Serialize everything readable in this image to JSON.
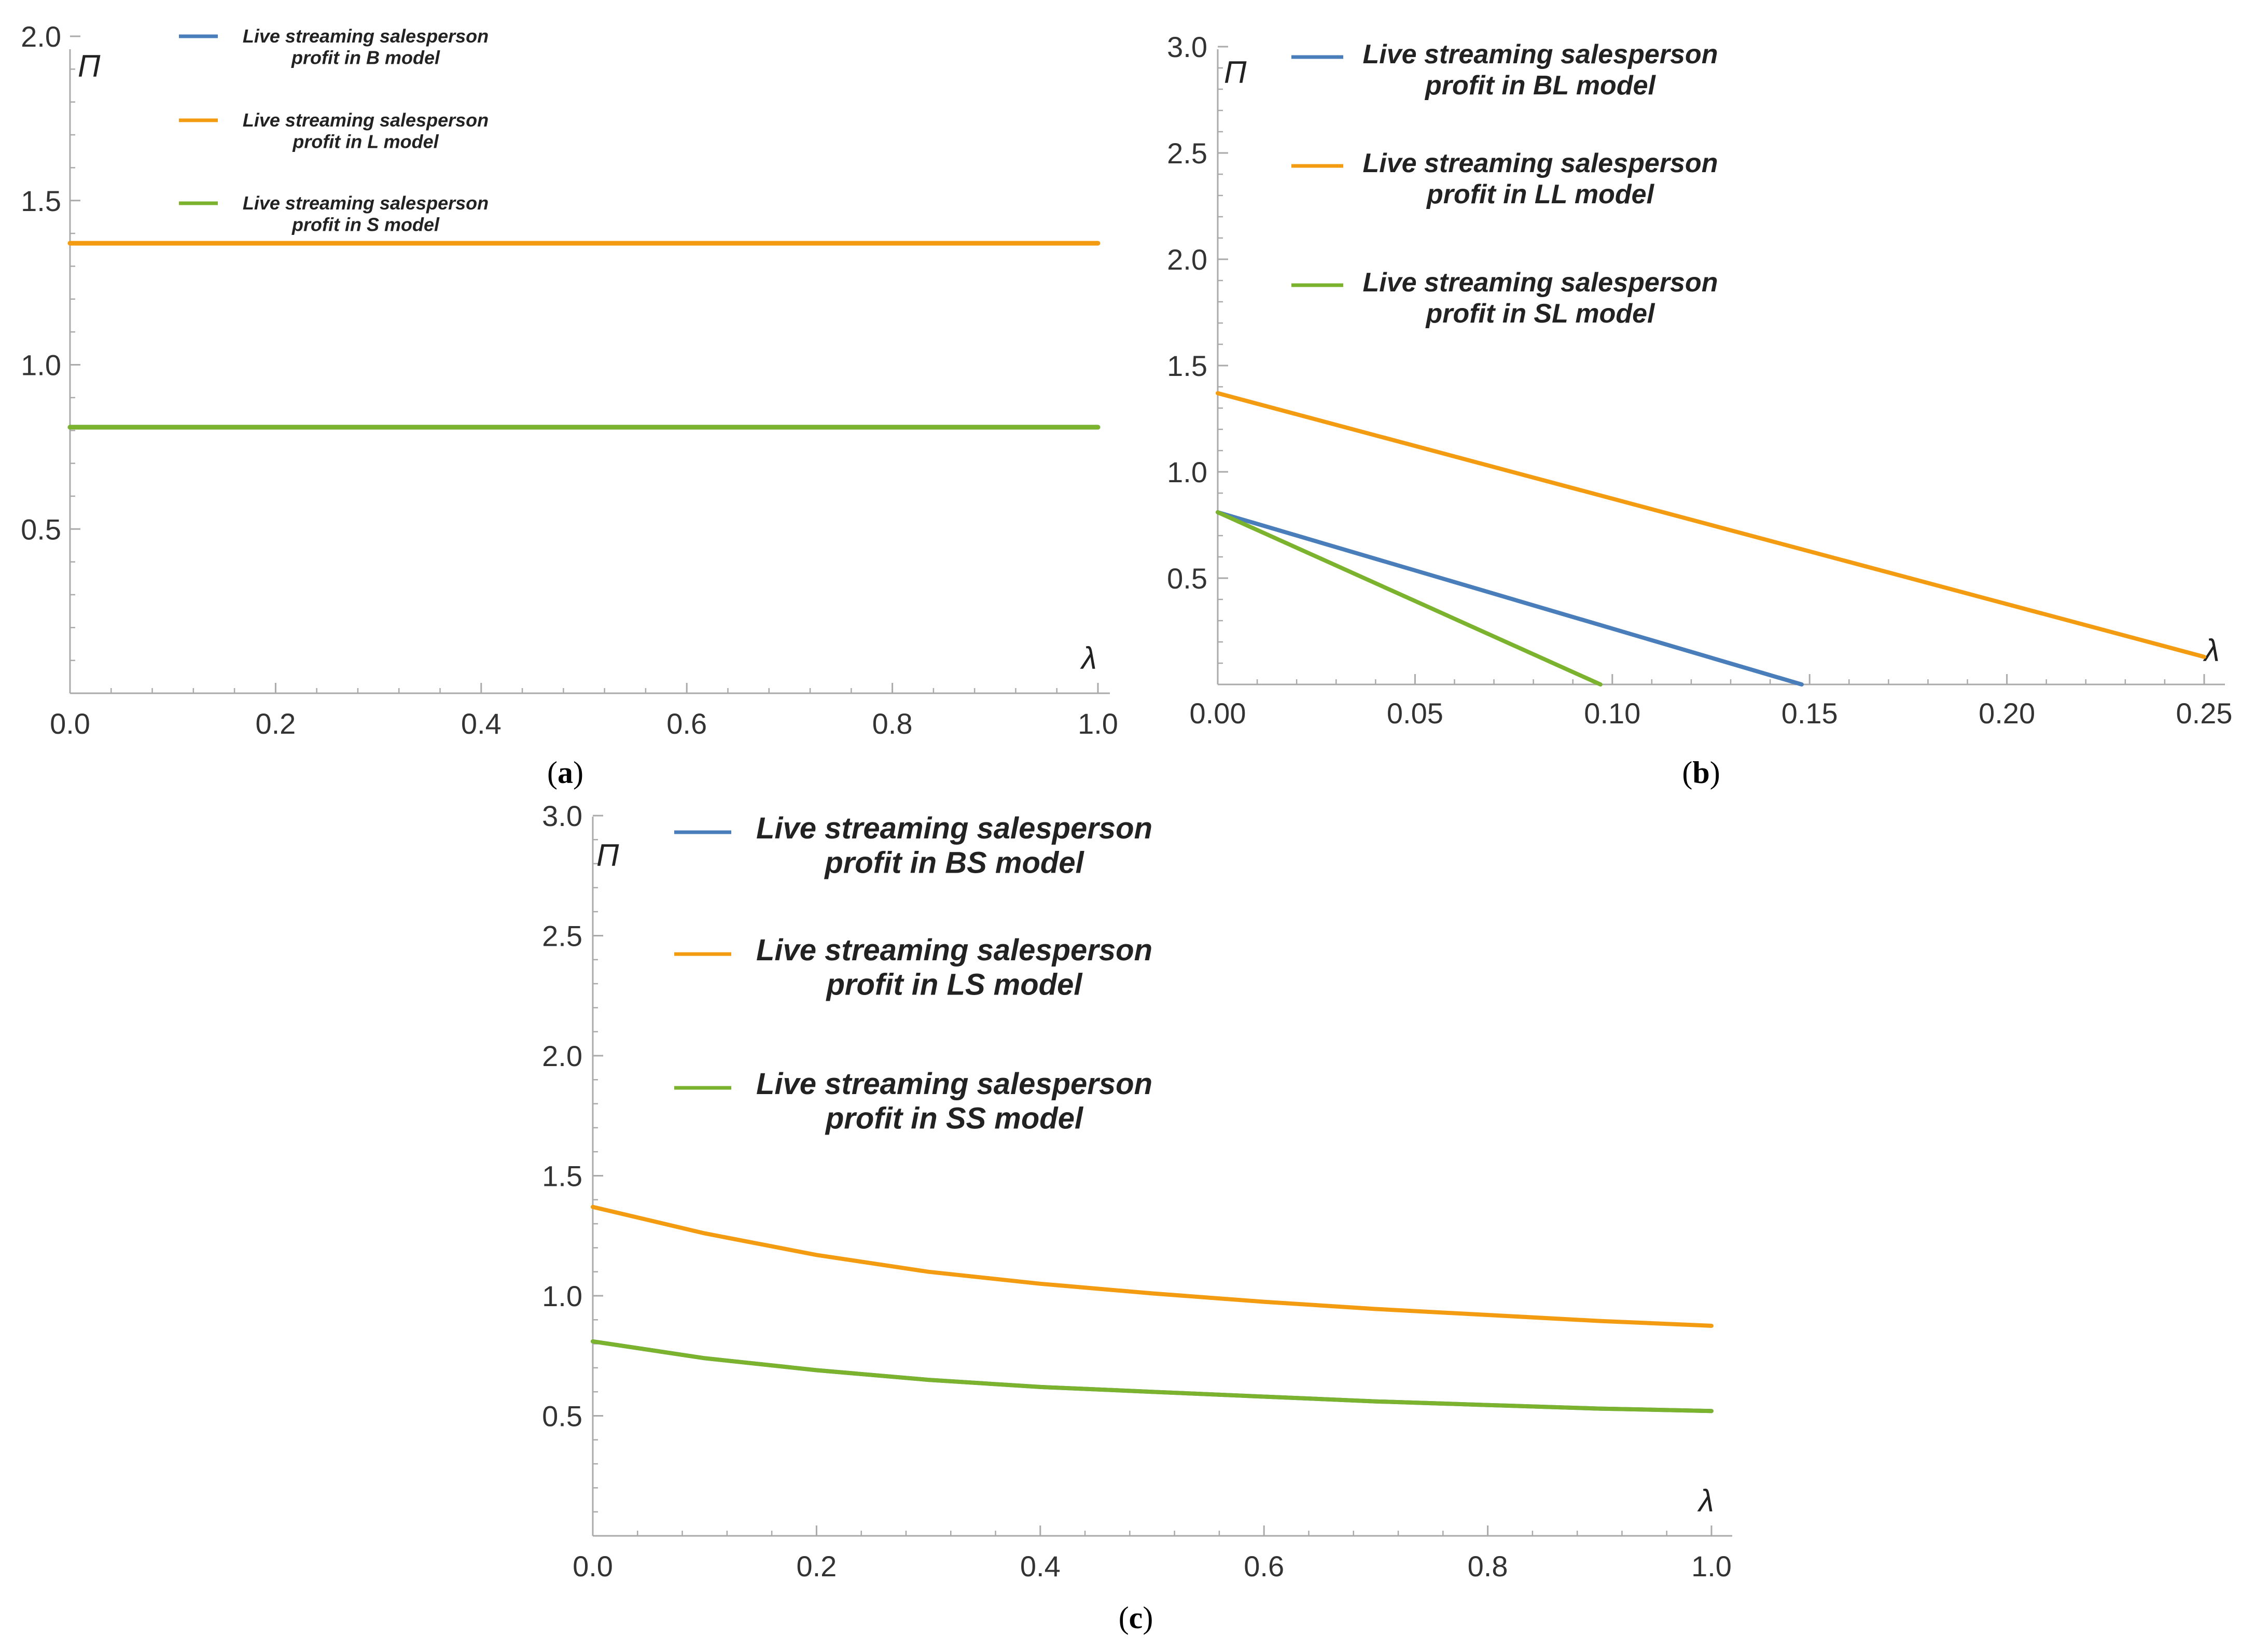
{
  "colors": {
    "B": "#4a7ebb",
    "L": "#f39c12",
    "S": "#7bb32e",
    "axis": "#aaaaaa",
    "text": "#333333"
  },
  "chart_data": [
    {
      "id": "a",
      "panel_label": "(a)",
      "type": "line",
      "title": "",
      "xlabel": "λ",
      "ylabel": "Π",
      "xlim": [
        0,
        1.0
      ],
      "ylim": [
        0,
        2.0
      ],
      "x_ticks": [
        "0.0",
        "0.2",
        "0.4",
        "0.6",
        "0.8",
        "1.0"
      ],
      "x_tick_values": [
        0,
        0.2,
        0.4,
        0.6,
        0.8,
        1.0
      ],
      "y_ticks": [
        "0.5",
        "1.0",
        "1.5",
        "2.0"
      ],
      "y_tick_values": [
        0.5,
        1.0,
        1.5,
        2.0
      ],
      "series": [
        {
          "name": "Live streaming salesperson profit in B model",
          "legend_lines": [
            "Live streaming salesperson",
            "profit in B model"
          ],
          "color_key": "B",
          "x": [
            0,
            1.0
          ],
          "y": [
            0.81,
            0.81
          ]
        },
        {
          "name": "Live streaming salesperson profit in L model",
          "legend_lines": [
            "Live streaming salesperson",
            "profit in L model"
          ],
          "color_key": "L",
          "x": [
            0,
            1.0
          ],
          "y": [
            1.37,
            1.37
          ]
        },
        {
          "name": "Live streaming salesperson profit in S model",
          "legend_lines": [
            "Live streaming salesperson",
            "profit in S model"
          ],
          "color_key": "S",
          "x": [
            0,
            1.0
          ],
          "y": [
            0.81,
            0.81
          ]
        }
      ]
    },
    {
      "id": "b",
      "panel_label": "(b)",
      "type": "line",
      "title": "",
      "xlabel": "λ",
      "ylabel": "Π",
      "xlim": [
        0,
        0.25
      ],
      "ylim": [
        0,
        3.0
      ],
      "x_ticks": [
        "0.00",
        "0.05",
        "0.10",
        "0.15",
        "0.20",
        "0.25"
      ],
      "x_tick_values": [
        0,
        0.05,
        0.1,
        0.15,
        0.2,
        0.25
      ],
      "y_ticks": [
        "0.5",
        "1.0",
        "1.5",
        "2.0",
        "2.5",
        "3.0"
      ],
      "y_tick_values": [
        0.5,
        1.0,
        1.5,
        2.0,
        2.5,
        3.0
      ],
      "series": [
        {
          "name": "Live streaming salesperson profit in BL model",
          "legend_lines": [
            "Live streaming salesperson",
            "profit in BL model"
          ],
          "color_key": "B",
          "x": [
            0,
            0.148
          ],
          "y": [
            0.81,
            0.0
          ]
        },
        {
          "name": "Live streaming salesperson profit in LL model",
          "legend_lines": [
            "Live streaming salesperson",
            "profit in LL model"
          ],
          "color_key": "L",
          "x": [
            0,
            0.25
          ],
          "y": [
            1.37,
            0.13
          ]
        },
        {
          "name": "Live streaming salesperson profit in SL model",
          "legend_lines": [
            "Live streaming salesperson",
            "profit in SL model"
          ],
          "color_key": "S",
          "x": [
            0,
            0.097
          ],
          "y": [
            0.81,
            0.0
          ]
        }
      ]
    },
    {
      "id": "c",
      "panel_label": "(c)",
      "type": "line",
      "title": "",
      "xlabel": "λ",
      "ylabel": "Π",
      "xlim": [
        0,
        1.0
      ],
      "ylim": [
        0,
        3.0
      ],
      "x_ticks": [
        "0.0",
        "0.2",
        "0.4",
        "0.6",
        "0.8",
        "1.0"
      ],
      "x_tick_values": [
        0,
        0.2,
        0.4,
        0.6,
        0.8,
        1.0
      ],
      "y_ticks": [
        "0.5",
        "1.0",
        "1.5",
        "2.0",
        "2.5",
        "3.0"
      ],
      "y_tick_values": [
        0.5,
        1.0,
        1.5,
        2.0,
        2.5,
        3.0
      ],
      "series": [
        {
          "name": "Live streaming salesperson profit in BS model",
          "legend_lines": [
            "Live streaming salesperson",
            "profit in BS model"
          ],
          "color_key": "B",
          "x": [
            0,
            0.1,
            0.2,
            0.3,
            0.4,
            0.5,
            0.6,
            0.7,
            0.8,
            0.9,
            1.0
          ],
          "y": [
            0.81,
            0.74,
            0.69,
            0.65,
            0.62,
            0.6,
            0.58,
            0.56,
            0.545,
            0.53,
            0.52
          ]
        },
        {
          "name": "Live streaming salesperson profit in LS model",
          "legend_lines": [
            "Live streaming salesperson",
            "profit in LS model"
          ],
          "color_key": "L",
          "x": [
            0,
            0.1,
            0.2,
            0.3,
            0.4,
            0.5,
            0.6,
            0.7,
            0.8,
            0.9,
            1.0
          ],
          "y": [
            1.37,
            1.26,
            1.17,
            1.1,
            1.05,
            1.01,
            0.975,
            0.945,
            0.92,
            0.895,
            0.875
          ]
        },
        {
          "name": "Live streaming salesperson profit in SS model",
          "legend_lines": [
            "Live streaming salesperson",
            "profit in SS model"
          ],
          "color_key": "S",
          "x": [
            0,
            0.1,
            0.2,
            0.3,
            0.4,
            0.5,
            0.6,
            0.7,
            0.8,
            0.9,
            1.0
          ],
          "y": [
            0.81,
            0.74,
            0.69,
            0.65,
            0.62,
            0.6,
            0.58,
            0.56,
            0.545,
            0.53,
            0.52
          ]
        }
      ]
    }
  ]
}
